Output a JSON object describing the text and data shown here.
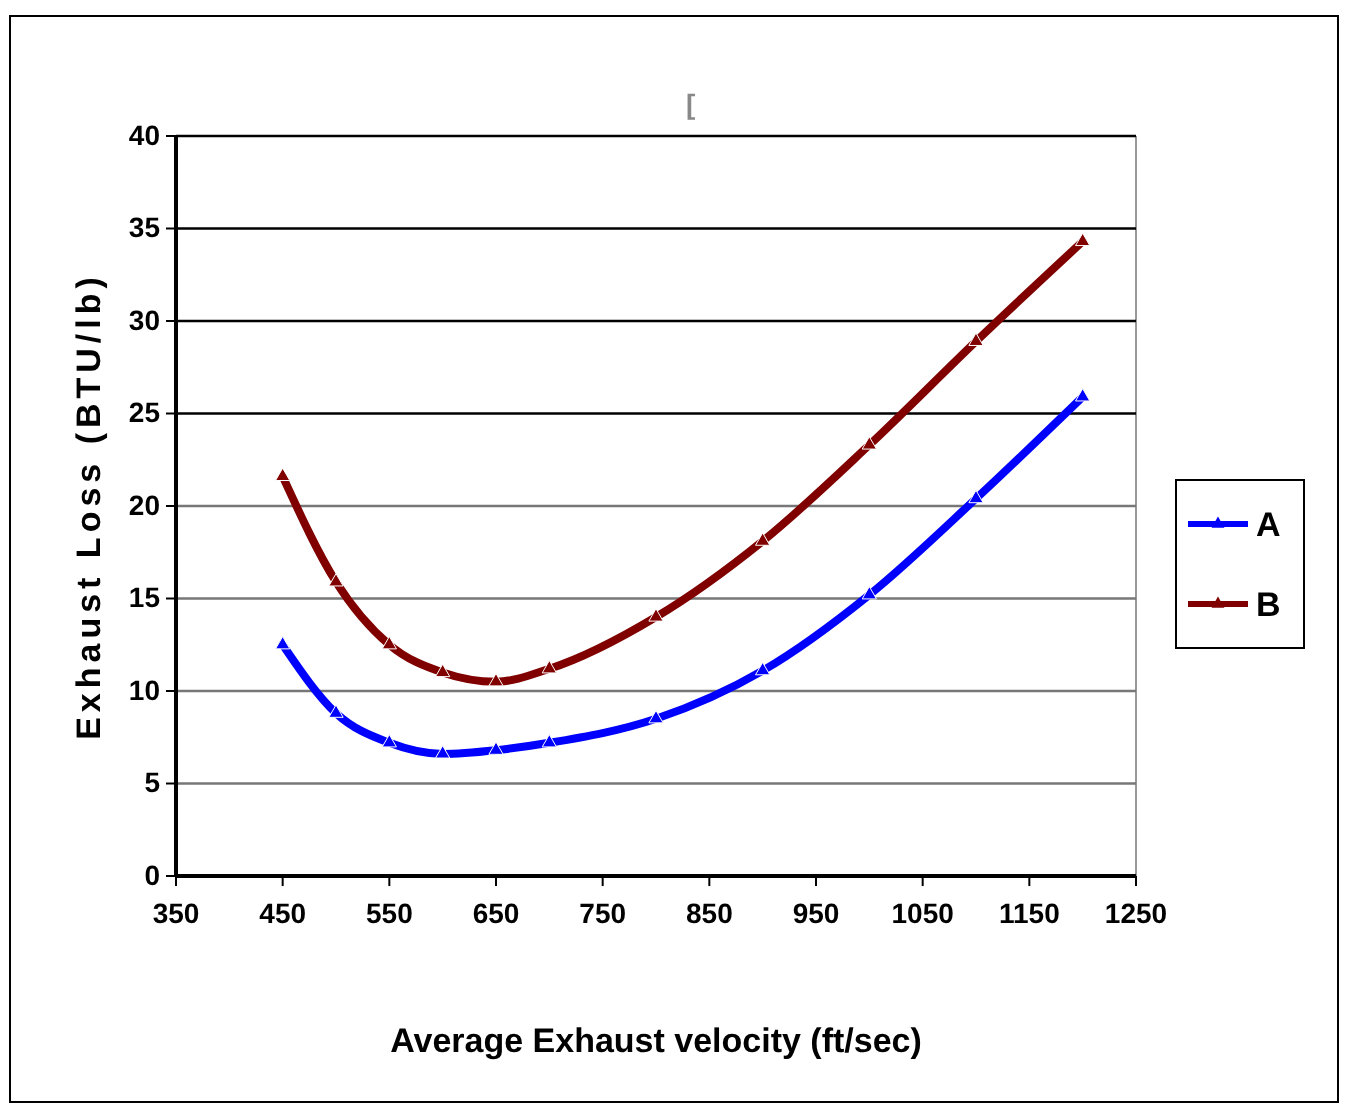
{
  "chart_data": {
    "type": "line",
    "xlabel": "Average Exhaust velocity (ft/sec)",
    "ylabel": "Exhaust Loss (BTU/lb)",
    "annotations": [
      "["
    ],
    "x": [
      450,
      500,
      550,
      600,
      650,
      700,
      800,
      900,
      1000,
      1100,
      1200
    ],
    "series": [
      {
        "name": "A",
        "color": "#0000ff",
        "values": [
          12.5,
          8.8,
          7.2,
          6.6,
          6.8,
          7.2,
          8.5,
          11.1,
          15.2,
          20.4,
          25.9
        ]
      },
      {
        "name": "B",
        "color": "#800000",
        "values": [
          21.6,
          15.9,
          12.5,
          11.0,
          10.5,
          11.2,
          14.0,
          18.1,
          23.3,
          28.9,
          34.3
        ]
      }
    ],
    "xlim": [
      350,
      1250
    ],
    "xticks": [
      350,
      450,
      550,
      650,
      750,
      850,
      950,
      1050,
      1150,
      1250
    ],
    "ylim": [
      0,
      40
    ],
    "yticks": [
      0,
      5,
      10,
      15,
      20,
      25,
      30,
      35,
      40
    ],
    "grid": "y",
    "legend": "right",
    "marker": "triangle",
    "line_style": "solid"
  }
}
